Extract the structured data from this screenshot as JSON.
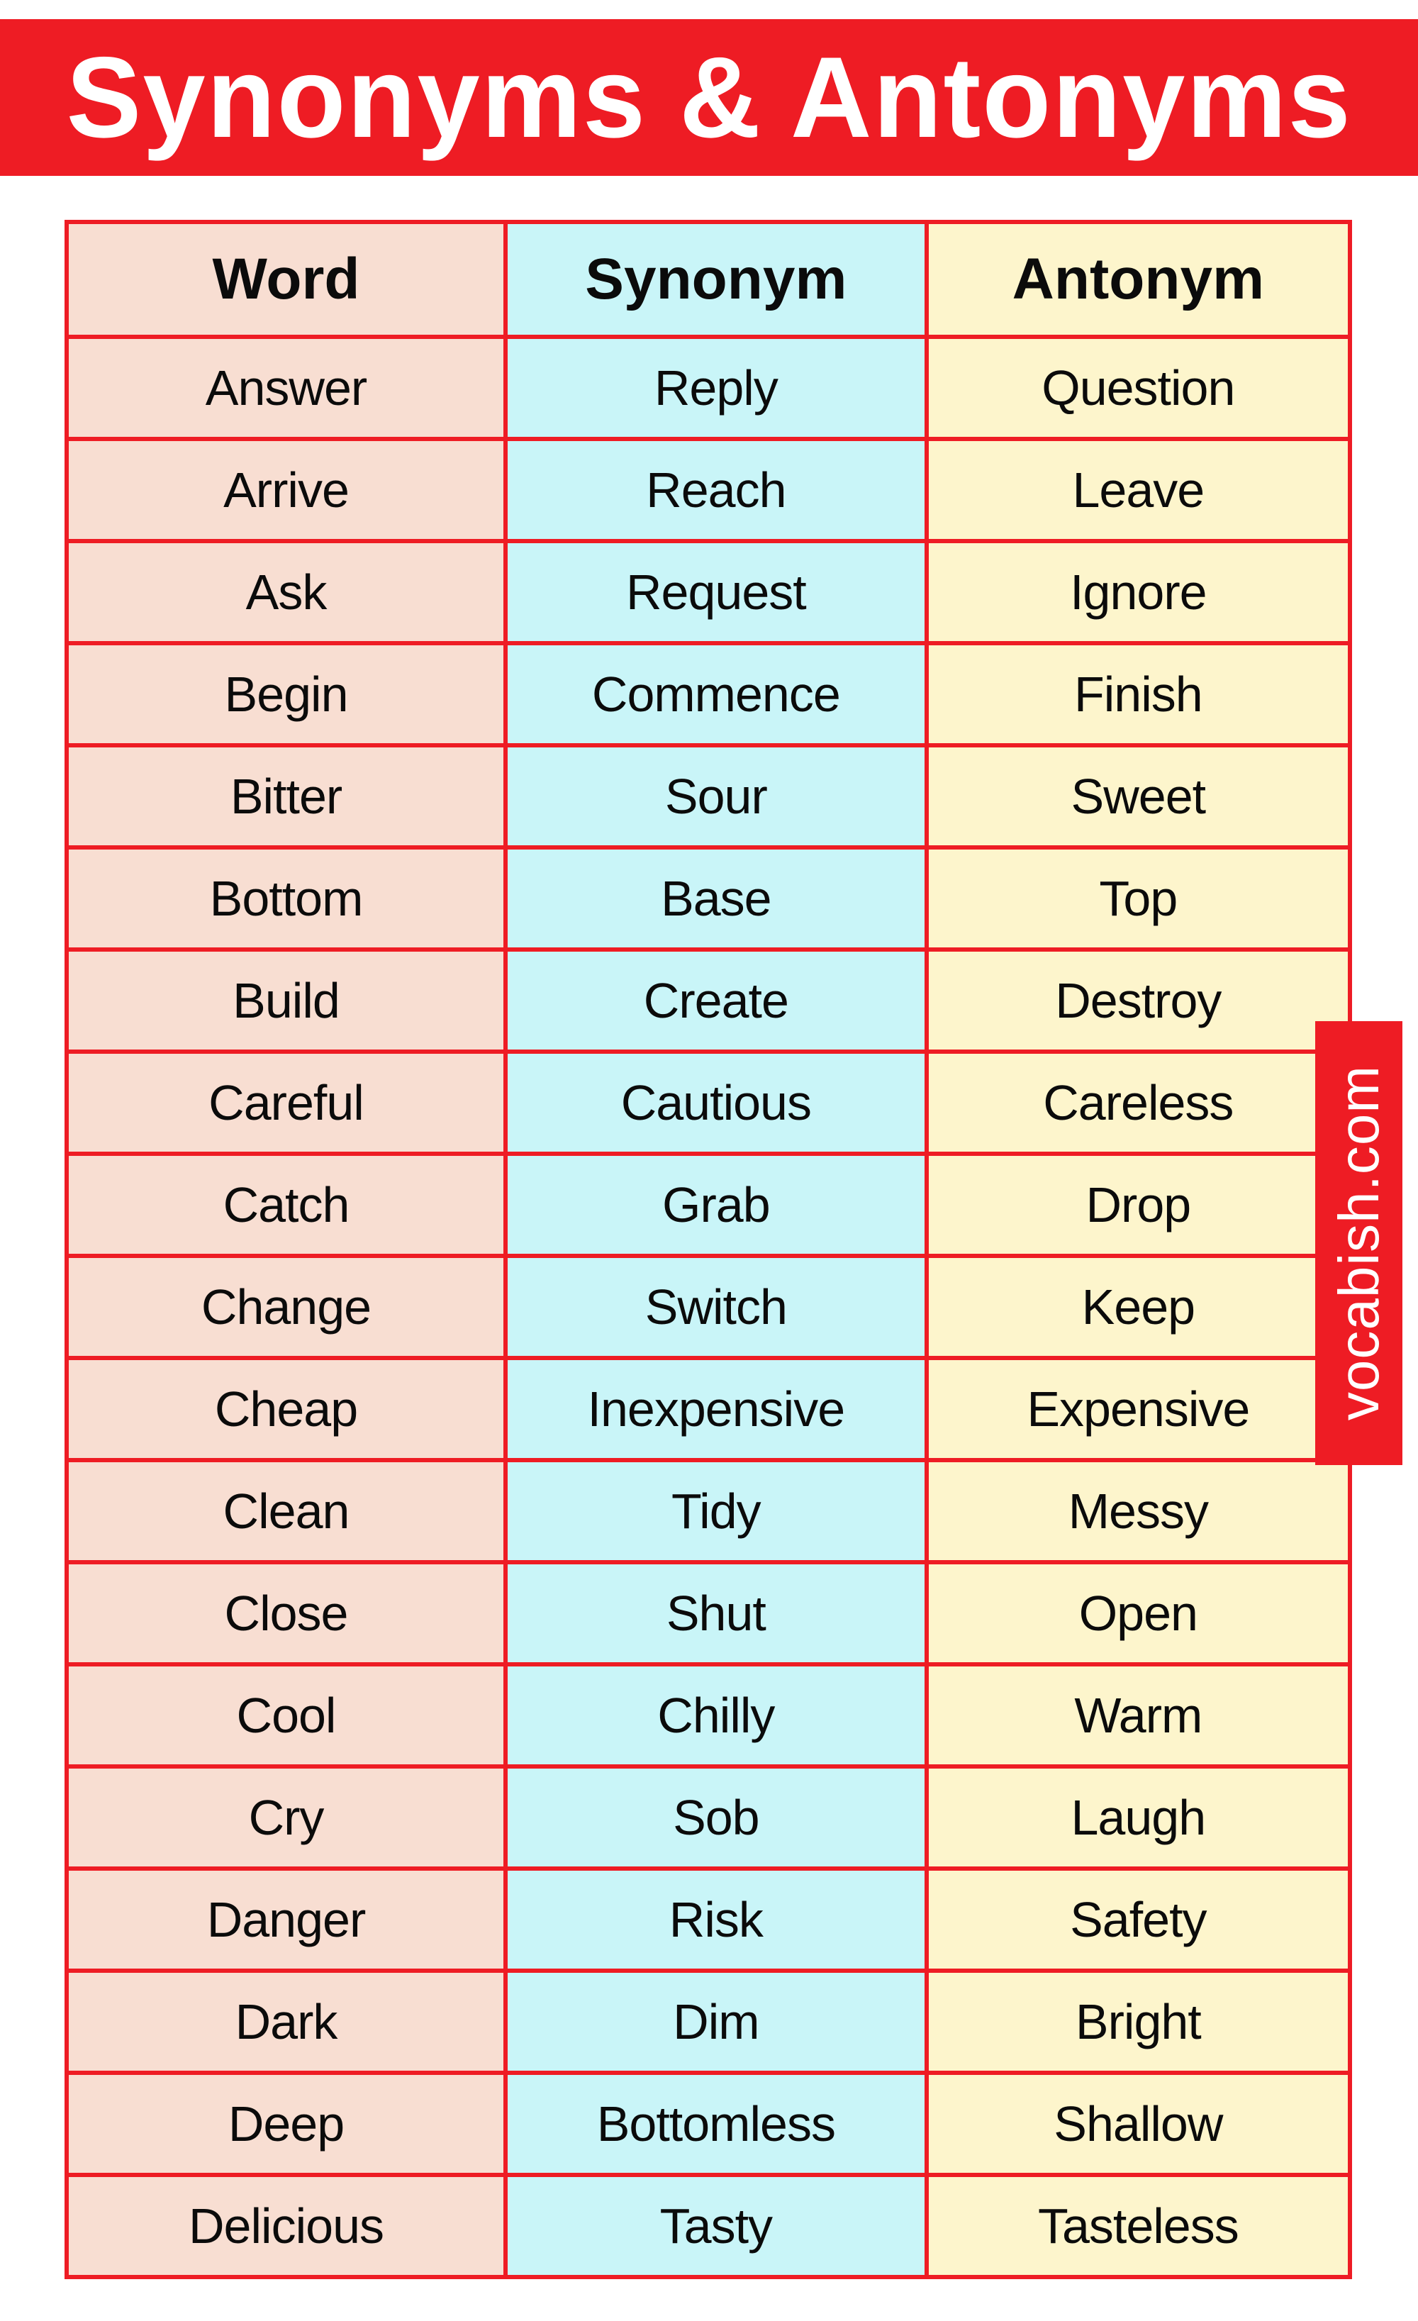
{
  "banner": {
    "title": "Synonyms & Antonyms",
    "background": "#ee1c24",
    "text_color": "#ffffff"
  },
  "watermark": {
    "text": "vocabish.com",
    "background": "#ee1c24",
    "text_color": "#ffffff"
  },
  "table": {
    "border_color": "#ee1c24",
    "text_color": "#0b0b0b",
    "columns": [
      {
        "header": "Word",
        "background": "#f8ded2"
      },
      {
        "header": "Synonym",
        "background": "#c9f5f8"
      },
      {
        "header": "Antonym",
        "background": "#fdf5cc"
      }
    ],
    "rows": [
      {
        "word": "Answer",
        "synonym": "Reply",
        "antonym": "Question"
      },
      {
        "word": "Arrive",
        "synonym": "Reach",
        "antonym": "Leave"
      },
      {
        "word": "Ask",
        "synonym": "Request",
        "antonym": "Ignore"
      },
      {
        "word": "Begin",
        "synonym": "Commence",
        "antonym": "Finish"
      },
      {
        "word": "Bitter",
        "synonym": "Sour",
        "antonym": "Sweet"
      },
      {
        "word": "Bottom",
        "synonym": "Base",
        "antonym": "Top"
      },
      {
        "word": "Build",
        "synonym": "Create",
        "antonym": "Destroy"
      },
      {
        "word": "Careful",
        "synonym": "Cautious",
        "antonym": "Careless"
      },
      {
        "word": "Catch",
        "synonym": "Grab",
        "antonym": "Drop"
      },
      {
        "word": "Change",
        "synonym": "Switch",
        "antonym": "Keep"
      },
      {
        "word": "Cheap",
        "synonym": "Inexpensive",
        "antonym": "Expensive"
      },
      {
        "word": "Clean",
        "synonym": "Tidy",
        "antonym": "Messy"
      },
      {
        "word": "Close",
        "synonym": "Shut",
        "antonym": "Open"
      },
      {
        "word": "Cool",
        "synonym": "Chilly",
        "antonym": "Warm"
      },
      {
        "word": "Cry",
        "synonym": "Sob",
        "antonym": "Laugh"
      },
      {
        "word": "Danger",
        "synonym": "Risk",
        "antonym": "Safety"
      },
      {
        "word": "Dark",
        "synonym": "Dim",
        "antonym": "Bright"
      },
      {
        "word": "Deep",
        "synonym": "Bottomless",
        "antonym": "Shallow"
      },
      {
        "word": "Delicious",
        "synonym": "Tasty",
        "antonym": "Tasteless"
      }
    ]
  }
}
